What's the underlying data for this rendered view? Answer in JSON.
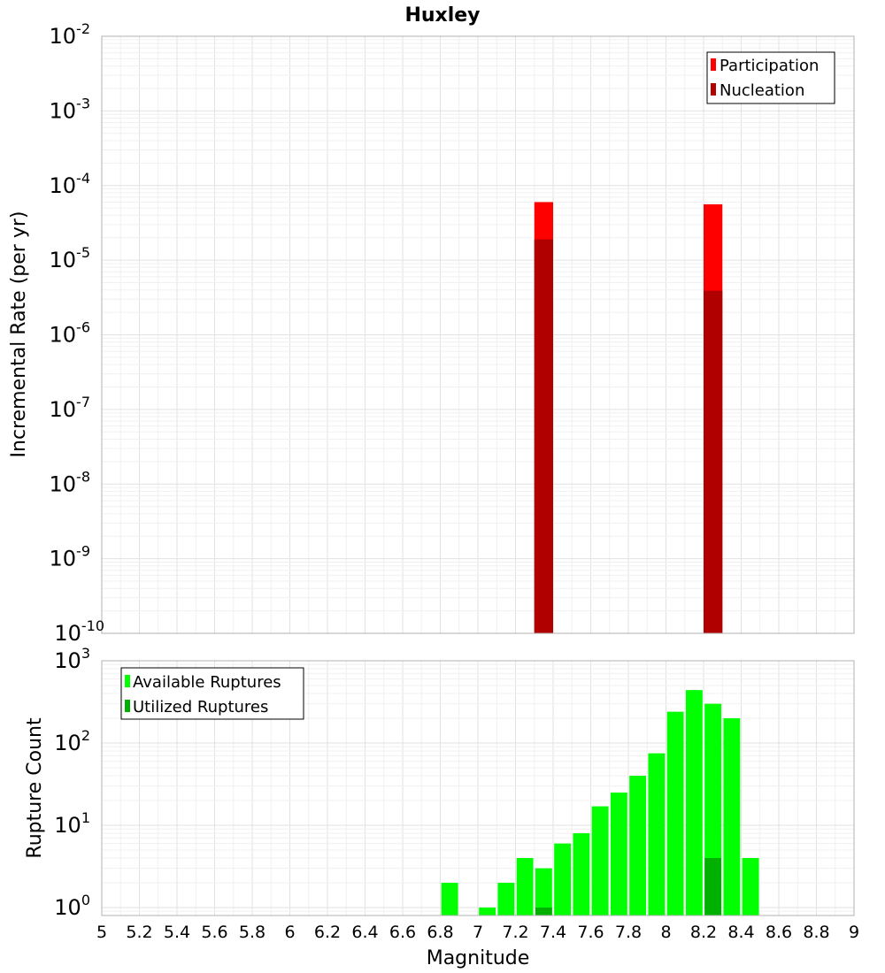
{
  "chart_data": [
    {
      "type": "bar",
      "title": "Huxley",
      "ylabel": "Incremental Rate (per yr)",
      "yscale": "log",
      "ylim": [
        1e-10,
        0.01
      ],
      "xlim": [
        5,
        9
      ],
      "bin_width": 0.1,
      "legend_position": "top-right",
      "grid": true,
      "series": [
        {
          "name": "Participation",
          "color": "#ff0000",
          "x": [
            7.35,
            8.25
          ],
          "values": [
            6e-05,
            5.6e-05
          ]
        },
        {
          "name": "Nucleation",
          "color": "#b00000",
          "x": [
            7.35,
            8.25
          ],
          "values": [
            1.9e-05,
            3.9e-06
          ]
        }
      ],
      "y_tick_labels": [
        {
          "base": "10",
          "exp": "-10"
        },
        {
          "base": "10",
          "exp": "-9"
        },
        {
          "base": "10",
          "exp": "-8"
        },
        {
          "base": "10",
          "exp": "-7"
        },
        {
          "base": "10",
          "exp": "-6"
        },
        {
          "base": "10",
          "exp": "-5"
        },
        {
          "base": "10",
          "exp": "-4"
        },
        {
          "base": "10",
          "exp": "-3"
        },
        {
          "base": "10",
          "exp": "-2"
        }
      ]
    },
    {
      "type": "bar",
      "ylabel": "Rupture Count",
      "xlabel": "Magnitude",
      "yscale": "log",
      "ylim": [
        0.8,
        1000
      ],
      "xlim": [
        5,
        9
      ],
      "bin_width": 0.1,
      "legend_position": "top-left",
      "grid": true,
      "series": [
        {
          "name": "Available Ruptures",
          "color": "#00ff00",
          "x": [
            6.85,
            7.05,
            7.15,
            7.25,
            7.35,
            7.45,
            7.55,
            7.65,
            7.75,
            7.85,
            7.95,
            8.05,
            8.15,
            8.25,
            8.35,
            8.45
          ],
          "values": [
            2,
            1,
            2,
            4,
            3,
            6,
            8,
            17,
            25,
            40,
            75,
            240,
            440,
            300,
            200,
            4
          ]
        },
        {
          "name": "Utilized Ruptures",
          "color": "#00b000",
          "x": [
            7.35,
            8.25
          ],
          "values": [
            1,
            4
          ]
        }
      ],
      "x_tick_labels": [
        "5",
        "5.2",
        "5.4",
        "5.6",
        "5.8",
        "6",
        "6.2",
        "6.4",
        "6.6",
        "6.8",
        "7",
        "7.2",
        "7.4",
        "7.6",
        "7.8",
        "8",
        "8.2",
        "8.4",
        "8.6",
        "8.8",
        "9"
      ],
      "y_tick_labels": [
        {
          "base": "10",
          "exp": "0"
        },
        {
          "base": "10",
          "exp": "1"
        },
        {
          "base": "10",
          "exp": "2"
        },
        {
          "base": "10",
          "exp": "3"
        }
      ]
    }
  ]
}
